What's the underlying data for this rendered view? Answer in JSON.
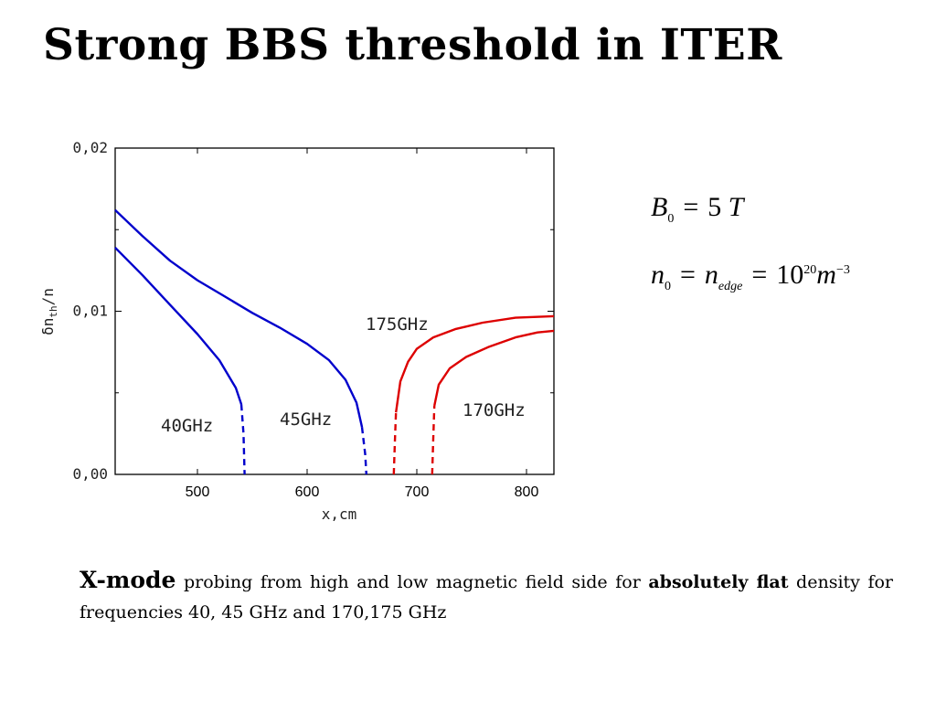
{
  "slide": {
    "title": "Strong BBS threshold in ITER"
  },
  "chart_data": {
    "type": "line",
    "xlabel": "x,cm",
    "ylabel_main": "δn",
    "ylabel_sub": "th",
    "ylabel_tail": "/n",
    "xlim": [
      425,
      825
    ],
    "ylim": [
      0.0,
      0.02
    ],
    "xticks": [
      500,
      600,
      700,
      800
    ],
    "xtick_labels": [
      "500",
      "600",
      "700",
      "800"
    ],
    "yticks": [
      0.0,
      0.01,
      0.02
    ],
    "ytick_labels": [
      "0,00",
      "0,01",
      "0,02"
    ],
    "grid": false,
    "series": [
      {
        "name": "40GHz",
        "color": "#0000cc",
        "solid": [
          [
            425,
            0.0139
          ],
          [
            450,
            0.0122
          ],
          [
            475,
            0.0104
          ],
          [
            500,
            0.0086
          ],
          [
            520,
            0.007
          ],
          [
            535,
            0.0053
          ],
          [
            540,
            0.0043
          ]
        ],
        "dashed": [
          [
            540,
            0.0043
          ],
          [
            542,
            0.0025
          ],
          [
            543,
            0.0
          ]
        ]
      },
      {
        "name": "45GHz",
        "color": "#0000cc",
        "solid": [
          [
            425,
            0.0162
          ],
          [
            450,
            0.0146
          ],
          [
            475,
            0.0131
          ],
          [
            500,
            0.0119
          ],
          [
            525,
            0.0109
          ],
          [
            550,
            0.0099
          ],
          [
            575,
            0.009
          ],
          [
            600,
            0.008
          ],
          [
            620,
            0.007
          ],
          [
            635,
            0.0058
          ],
          [
            645,
            0.0044
          ],
          [
            650,
            0.0029
          ]
        ],
        "dashed": [
          [
            650,
            0.0029
          ],
          [
            653,
            0.0012
          ],
          [
            654,
            0.0
          ]
        ]
      },
      {
        "name": "175GHz",
        "color": "#dd0000",
        "solid": [
          [
            681,
            0.0038
          ],
          [
            685,
            0.0057
          ],
          [
            692,
            0.0069
          ],
          [
            700,
            0.0077
          ],
          [
            715,
            0.0084
          ],
          [
            735,
            0.0089
          ],
          [
            760,
            0.0093
          ],
          [
            790,
            0.0096
          ],
          [
            825,
            0.0097
          ]
        ],
        "dashed": [
          [
            679,
            0.0
          ],
          [
            680,
            0.002
          ],
          [
            681,
            0.0038
          ]
        ]
      },
      {
        "name": "170GHz",
        "color": "#dd0000",
        "solid": [
          [
            716,
            0.0042
          ],
          [
            720,
            0.0055
          ],
          [
            730,
            0.0065
          ],
          [
            745,
            0.0072
          ],
          [
            765,
            0.0078
          ],
          [
            790,
            0.0084
          ],
          [
            810,
            0.0087
          ],
          [
            825,
            0.0088
          ]
        ],
        "dashed": [
          [
            714,
            0.0
          ],
          [
            715,
            0.0022
          ],
          [
            716,
            0.0042
          ]
        ]
      }
    ]
  },
  "equations": {
    "line1": {
      "var": "B",
      "sub": "0",
      "op": "=",
      "val": "5",
      "unit": "T"
    },
    "line2": {
      "var": "n",
      "sub": "0",
      "op1": "=",
      "var2": "n",
      "sub2": "edge",
      "op2": "=",
      "base": "10",
      "exp": "20",
      "unit": "m",
      "unit_exp": "−3"
    }
  },
  "caption": {
    "lead": "X-mode",
    "text1": " probing from high and low magnetic field side for ",
    "bold": "absolutely flat",
    "text2": " density for frequencies 40, 45 GHz and 170,175 GHz"
  }
}
